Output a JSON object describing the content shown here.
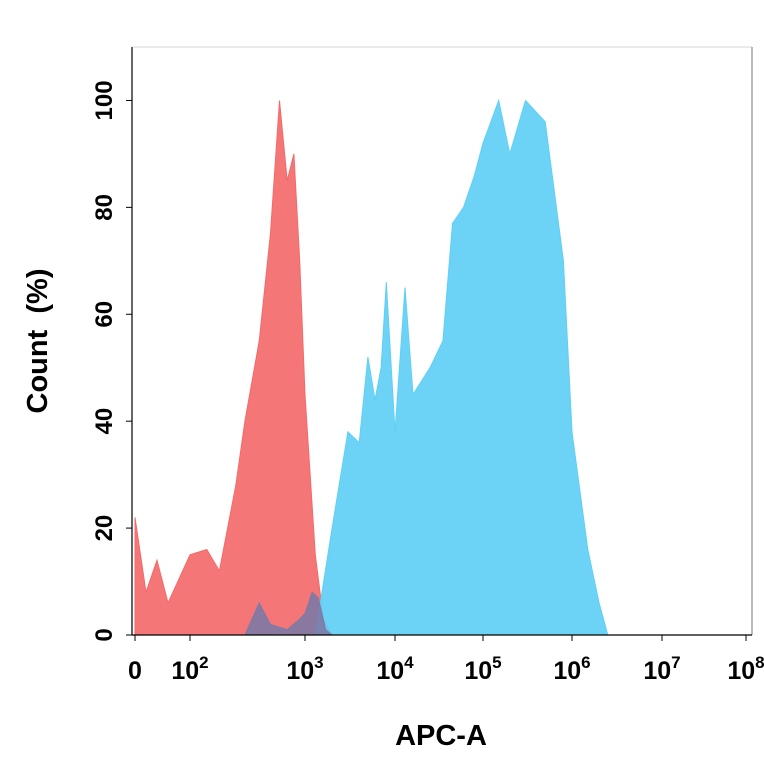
{
  "chart_data": {
    "type": "area",
    "title": "",
    "xlabel": "APC-A",
    "ylabel": "Count  (%)",
    "x_scale": "biexponential",
    "ylim": [
      0,
      110
    ],
    "grid": false,
    "legend": "none",
    "y_ticks": [
      "0",
      "20",
      "40",
      "60",
      "80",
      "100"
    ],
    "x_ticks": [
      {
        "value": 0,
        "base": "0",
        "exp": ""
      },
      {
        "value": 100,
        "base": "10",
        "exp": "2"
      },
      {
        "value": 1000,
        "base": "10",
        "exp": "3"
      },
      {
        "value": 10000,
        "base": "10",
        "exp": "4"
      },
      {
        "value": 100000,
        "base": "10",
        "exp": "5"
      },
      {
        "value": 1000000,
        "base": "10",
        "exp": "6"
      },
      {
        "value": 10000000,
        "base": "10",
        "exp": "7"
      },
      {
        "value": 100000000,
        "base": "10",
        "exp": "8"
      }
    ],
    "series": [
      {
        "color": "#f46a6a",
        "values": [
          [
            0,
            22
          ],
          [
            20,
            8
          ],
          [
            40,
            14
          ],
          [
            60,
            6
          ],
          [
            100,
            15
          ],
          [
            140,
            16
          ],
          [
            180,
            12
          ],
          [
            250,
            28
          ],
          [
            300,
            40
          ],
          [
            400,
            55
          ],
          [
            500,
            75
          ],
          [
            600,
            100
          ],
          [
            700,
            85
          ],
          [
            800,
            90
          ],
          [
            900,
            70
          ],
          [
            1000,
            45
          ],
          [
            1300,
            15
          ],
          [
            1600,
            3
          ],
          [
            2000,
            0
          ]
        ]
      },
      {
        "color": "#5fcff5",
        "values": [
          [
            1300,
            0
          ],
          [
            2000,
            20
          ],
          [
            3000,
            38
          ],
          [
            4000,
            36
          ],
          [
            5000,
            52
          ],
          [
            6000,
            44
          ],
          [
            7000,
            50
          ],
          [
            8000,
            66
          ],
          [
            10000,
            38
          ],
          [
            13000,
            65
          ],
          [
            16000,
            45
          ],
          [
            25000,
            50
          ],
          [
            35000,
            55
          ],
          [
            45000,
            77
          ],
          [
            60000,
            80
          ],
          [
            80000,
            86
          ],
          [
            100000,
            92
          ],
          [
            150000,
            100
          ],
          [
            200000,
            90
          ],
          [
            300000,
            100
          ],
          [
            500000,
            96
          ],
          [
            800000,
            70
          ],
          [
            1000000,
            38
          ],
          [
            1500000,
            16
          ],
          [
            2000000,
            6
          ],
          [
            2500000,
            0
          ]
        ]
      },
      {
        "color": "#7d7aa6",
        "values": [
          [
            300,
            0
          ],
          [
            400,
            6
          ],
          [
            500,
            2
          ],
          [
            700,
            1
          ],
          [
            900,
            3
          ],
          [
            1000,
            4
          ],
          [
            1200,
            8
          ],
          [
            1400,
            7
          ],
          [
            1700,
            1
          ],
          [
            2000,
            0
          ]
        ]
      }
    ]
  }
}
